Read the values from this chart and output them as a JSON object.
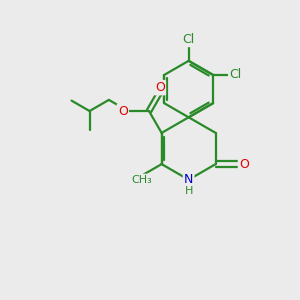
{
  "background_color": "#ebebeb",
  "bond_color": "#2a8a2a",
  "bond_width": 1.6,
  "atom_colors": {
    "O": "#e00000",
    "N": "#0000cc",
    "Cl": "#2a8a2a",
    "C": "#2a8a2a"
  },
  "figsize": [
    3.0,
    3.0
  ],
  "dpi": 100
}
